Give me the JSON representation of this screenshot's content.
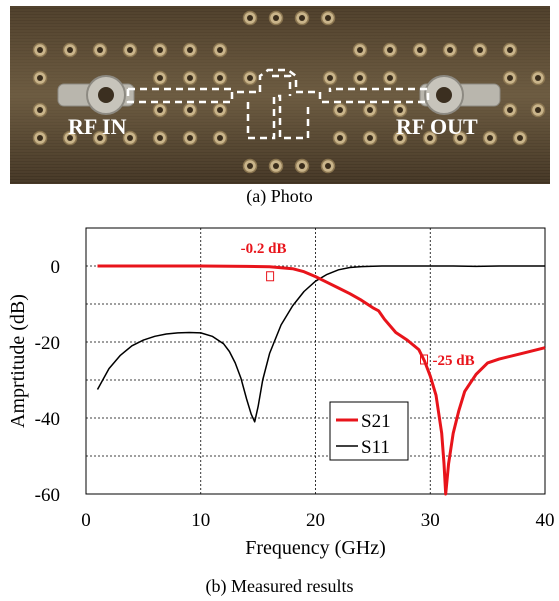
{
  "photo": {
    "caption": "(a) Photo",
    "label_in": "RF IN",
    "label_out": "RF OUT"
  },
  "caption_b": "(b) Measured results",
  "colors": {
    "s21": "#e8141b",
    "s11": "#000000",
    "board": "#5e4b34"
  },
  "chart_data": {
    "type": "line",
    "xlabel": "Frequency (GHz)",
    "ylabel": "Amprtitude (dB)",
    "xlim": [
      0,
      40
    ],
    "ylim": [
      -60,
      10
    ],
    "xticks": [
      0,
      10,
      20,
      30,
      40
    ],
    "yticks": [
      0,
      -20,
      -40,
      -60
    ],
    "grid": true,
    "legend_position": "bottom-center",
    "series": [
      {
        "name": "S21",
        "color": "#e8141b",
        "x": [
          1,
          5,
          10,
          14,
          16,
          18,
          19,
          20,
          21,
          22,
          23,
          24,
          25,
          25.5,
          26,
          27,
          28,
          29,
          29.5,
          30,
          30.5,
          31,
          31.2,
          31.35,
          31.6,
          32,
          32.5,
          33,
          34,
          35,
          36,
          38,
          40
        ],
        "y": [
          0,
          0,
          0,
          -0.1,
          -0.2,
          -0.7,
          -1.5,
          -2.8,
          -4.3,
          -5.8,
          -7.3,
          -9.0,
          -11.0,
          -11.8,
          -14.0,
          -17.5,
          -19.5,
          -22.0,
          -25.0,
          -29.0,
          -34.0,
          -44.0,
          -52.0,
          -60.0,
          -52.0,
          -44.0,
          -38.0,
          -33.0,
          -28.5,
          -25.5,
          -24.5,
          -23.0,
          -21.5
        ]
      },
      {
        "name": "S11",
        "color": "#000000",
        "x": [
          1,
          2,
          3,
          4,
          5,
          6,
          7,
          8,
          9,
          10,
          11,
          12,
          12.5,
          13,
          13.5,
          14,
          14.4,
          14.7,
          15,
          15.4,
          16,
          17,
          18,
          19,
          20,
          21,
          22,
          23,
          24,
          25,
          26,
          28,
          30,
          32,
          34,
          36,
          38,
          40
        ],
        "y": [
          -32.5,
          -27,
          -23.5,
          -21,
          -19.5,
          -18.5,
          -17.9,
          -17.6,
          -17.5,
          -17.6,
          -18.5,
          -20.5,
          -22.5,
          -25.5,
          -29.5,
          -35,
          -39,
          -41,
          -37,
          -30,
          -23,
          -15.5,
          -10.5,
          -6.7,
          -4,
          -2.2,
          -1.0,
          -0.4,
          -0.15,
          -0.05,
          0,
          0,
          0,
          0,
          -0.1,
          0,
          0,
          0
        ]
      }
    ],
    "annotations": [
      {
        "text": "-0.2 dB",
        "x": 16,
        "y": -0.2
      },
      {
        "text": "-25 dB",
        "x": 29.5,
        "y": -25
      }
    ]
  }
}
